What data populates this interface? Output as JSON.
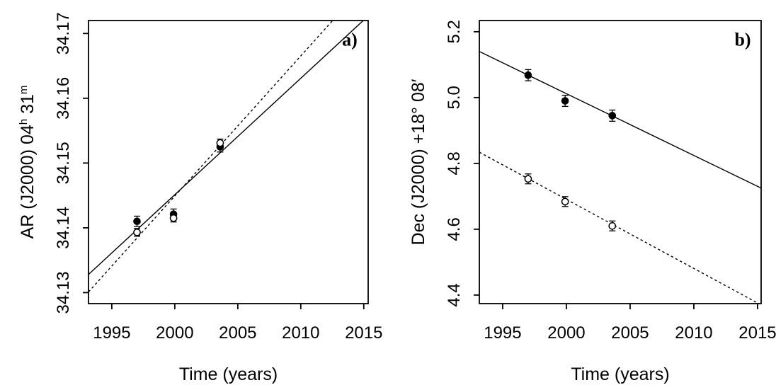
{
  "figure": {
    "background_color": "#ffffff",
    "ink_color": "#000000",
    "description": "Two-panel astrometry plot: position (AR / Dec) versus time with error bars and linear fits"
  },
  "chart_data": [
    {
      "panel_label": "a)",
      "type": "scatter",
      "xlabel": "Time (years)",
      "ylabel_plain": "AR (J2000) 04h 31m",
      "ylabel_segments": [
        {
          "t": "AR (J2000) 04"
        },
        {
          "t": "h",
          "sup": true
        },
        {
          "t": " 31"
        },
        {
          "t": "m",
          "sup": true
        }
      ],
      "xlim": [
        1993.15,
        2015.35
      ],
      "ylim": [
        34.1283,
        34.172
      ],
      "xticks": [
        1995,
        2000,
        2005,
        2010,
        2015
      ],
      "xtick_labels": [
        "1995",
        "2000",
        "2005",
        "2010",
        "2015"
      ],
      "yticks": [
        34.13,
        34.14,
        34.15,
        34.16,
        34.17
      ],
      "ytick_labels": [
        "34.13",
        "34.14",
        "34.15",
        "34.16",
        "34.17"
      ],
      "grid": false,
      "legend": null,
      "series": [
        {
          "name": "filled-circles",
          "marker": "filled-circle",
          "x": [
            1997.0,
            1999.9,
            2003.6
          ],
          "y": [
            34.141,
            34.1421,
            34.1525
          ],
          "yerr": [
            0.0008,
            0.0008,
            0.0008
          ],
          "fit_line": {
            "style": "solid",
            "x": [
              1993.15,
              2015.35
            ],
            "y": [
              34.1328,
              34.1727
            ]
          }
        },
        {
          "name": "open-circles",
          "marker": "open-circle",
          "x": [
            1997.0,
            1999.9,
            2003.6
          ],
          "y": [
            34.1393,
            34.1415,
            34.1531
          ],
          "yerr": [
            0.0006,
            0.0006,
            0.0006
          ],
          "fit_line": {
            "style": "dashed",
            "x": [
              1993.15,
              2015.35
            ],
            "y": [
              34.1301,
              34.1781
            ]
          }
        }
      ]
    },
    {
      "panel_label": "b)",
      "type": "scatter",
      "xlabel": "Time (years)",
      "ylabel_plain": "Dec (J2000) +18° 08′",
      "ylabel_segments": [
        {
          "t": "Dec (J2000) +18° 08′"
        }
      ],
      "xlim": [
        1993.17,
        2015.28
      ],
      "ylim": [
        4.374,
        5.234
      ],
      "xticks": [
        1995,
        2000,
        2005,
        2010,
        2015
      ],
      "xtick_labels": [
        "1995",
        "2000",
        "2005",
        "2010",
        "2015"
      ],
      "yticks": [
        4.4,
        4.6,
        4.8,
        5.0,
        5.2
      ],
      "ytick_labels": [
        "4.4",
        "4.6",
        "4.8",
        "5.0",
        "5.2"
      ],
      "grid": false,
      "legend": null,
      "series": [
        {
          "name": "filled-circles",
          "marker": "filled-circle",
          "x": [
            1997.0,
            1999.9,
            2003.6
          ],
          "y": [
            5.068,
            4.99,
            4.945
          ],
          "yerr": [
            0.017,
            0.017,
            0.017
          ],
          "fit_line": {
            "style": "solid",
            "x": [
              1993.17,
              2015.28
            ],
            "y": [
              5.14,
              4.725
            ]
          }
        },
        {
          "name": "open-circles",
          "marker": "open-circle",
          "x": [
            1997.0,
            1999.9,
            2003.6
          ],
          "y": [
            4.753,
            4.684,
            4.61
          ],
          "yerr": [
            0.015,
            0.015,
            0.015
          ],
          "fit_line": {
            "style": "dashed",
            "x": [
              1993.17,
              2015.28
            ],
            "y": [
              4.834,
              4.37
            ]
          }
        }
      ]
    }
  ]
}
